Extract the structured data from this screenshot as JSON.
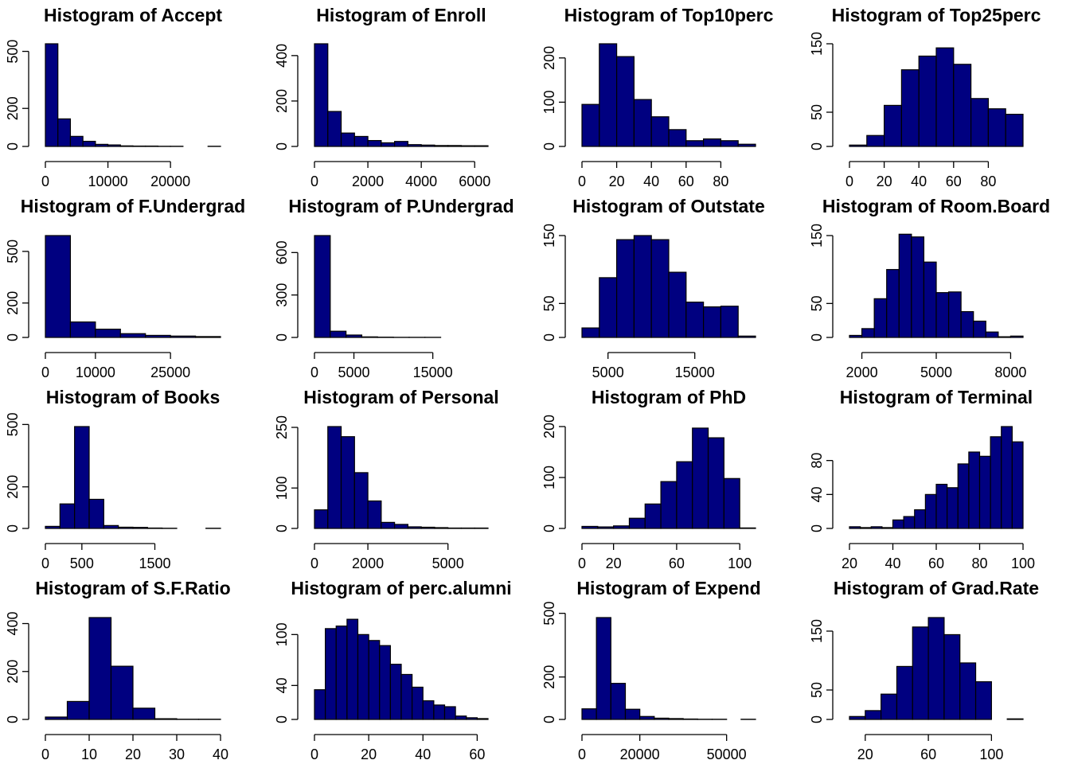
{
  "chart_data": [
    {
      "type": "bar",
      "title": "Histogram of Accept",
      "breaks": [
        0,
        2000,
        4000,
        6000,
        8000,
        10000,
        12000,
        14000,
        16000,
        18000,
        20000,
        22000,
        24000,
        26000,
        28000
      ],
      "counts": [
        540,
        145,
        53,
        27,
        11,
        8,
        3,
        2,
        2,
        1,
        1,
        0,
        0,
        1
      ],
      "xlim": [
        0,
        28000
      ],
      "ylim": [
        0,
        540
      ],
      "xticks": [
        0,
        10000,
        20000
      ],
      "yticks": [
        0,
        200,
        500
      ],
      "grid": false
    },
    {
      "type": "bar",
      "title": "Histogram of Enroll",
      "breaks": [
        0,
        500,
        1000,
        1500,
        2000,
        2500,
        3000,
        3500,
        4000,
        4500,
        5000,
        5500,
        6000,
        6500
      ],
      "counts": [
        452,
        154,
        59,
        44,
        26,
        16,
        22,
        8,
        6,
        4,
        4,
        3,
        3
      ],
      "xlim": [
        0,
        6500
      ],
      "ylim": [
        0,
        452
      ],
      "xticks": [
        0,
        2000,
        4000,
        6000
      ],
      "yticks": [
        0,
        200,
        400
      ],
      "grid": false
    },
    {
      "type": "bar",
      "title": "Histogram of Top10perc",
      "breaks": [
        0,
        10,
        20,
        30,
        40,
        50,
        60,
        70,
        80,
        90,
        100
      ],
      "counts": [
        95,
        232,
        203,
        106,
        67,
        38,
        13,
        17,
        13,
        5
      ],
      "xlim": [
        0,
        100
      ],
      "ylim": [
        0,
        232
      ],
      "xticks": [
        0,
        20,
        40,
        60,
        80
      ],
      "yticks": [
        0,
        100,
        200
      ],
      "grid": false
    },
    {
      "type": "bar",
      "title": "Histogram of Top25perc",
      "breaks": [
        0,
        10,
        20,
        30,
        40,
        50,
        60,
        70,
        80,
        90,
        100
      ],
      "counts": [
        2,
        16,
        60,
        112,
        132,
        144,
        120,
        70,
        55,
        47
      ],
      "xlim": [
        0,
        100
      ],
      "ylim": [
        0,
        150
      ],
      "xticks": [
        0,
        20,
        40,
        60,
        80
      ],
      "yticks": [
        0,
        50,
        150
      ],
      "grid": false
    },
    {
      "type": "bar",
      "title": "Histogram of F.Undergrad",
      "breaks": [
        0,
        5000,
        10000,
        15000,
        20000,
        25000,
        30000,
        35000
      ],
      "counts": [
        592,
        90,
        48,
        22,
        12,
        8,
        5
      ],
      "xlim": [
        0,
        35000
      ],
      "ylim": [
        0,
        592
      ],
      "xticks": [
        0,
        10000,
        25000
      ],
      "yticks": [
        0,
        200,
        500
      ],
      "grid": false
    },
    {
      "type": "bar",
      "title": "Histogram of P.Undergrad",
      "breaks": [
        0,
        2000,
        4000,
        6000,
        8000,
        10000,
        12000,
        14000,
        16000,
        18000,
        20000,
        22000
      ],
      "counts": [
        720,
        44,
        17,
        4,
        2,
        1,
        1,
        1,
        0,
        0,
        0,
        1
      ],
      "xlim": [
        0,
        22000
      ],
      "ylim": [
        0,
        720
      ],
      "xticks": [
        0,
        5000,
        15000
      ],
      "yticks": [
        0,
        300,
        600
      ],
      "grid": false
    },
    {
      "type": "bar",
      "title": "Histogram of Outstate",
      "breaks": [
        2000,
        4000,
        6000,
        8000,
        10000,
        12000,
        14000,
        16000,
        18000,
        20000,
        22000
      ],
      "counts": [
        14,
        88,
        144,
        150,
        144,
        96,
        52,
        45,
        46,
        2
      ],
      "xlim": [
        2000,
        22000
      ],
      "ylim": [
        0,
        150
      ],
      "xticks": [
        5000,
        15000
      ],
      "yticks": [
        0,
        50,
        150
      ],
      "grid": false
    },
    {
      "type": "bar",
      "title": "Histogram of Room.Board",
      "breaks": [
        1500,
        2000,
        2500,
        3000,
        3500,
        4000,
        4500,
        5000,
        5500,
        6000,
        6500,
        7000,
        7500,
        8000,
        8500
      ],
      "counts": [
        3,
        13,
        57,
        100,
        152,
        148,
        111,
        66,
        67,
        38,
        24,
        8,
        1,
        2
      ],
      "xlim": [
        1500,
        8500
      ],
      "ylim": [
        0,
        150
      ],
      "xticks": [
        2000,
        5000,
        8000
      ],
      "yticks": [
        0,
        50,
        150
      ],
      "grid": false
    },
    {
      "type": "bar",
      "title": "Histogram of Books",
      "breaks": [
        0,
        200,
        400,
        600,
        800,
        1000,
        1200,
        1400,
        1600,
        1800,
        2000,
        2200,
        2400
      ],
      "counts": [
        10,
        118,
        490,
        140,
        14,
        6,
        5,
        2,
        1,
        0,
        0,
        1
      ],
      "xlim": [
        0,
        2400
      ],
      "ylim": [
        0,
        490
      ],
      "xticks": [
        0,
        500,
        1500
      ],
      "yticks": [
        0,
        200,
        500
      ],
      "grid": false
    },
    {
      "type": "bar",
      "title": "Histogram of Personal",
      "breaks": [
        0,
        500,
        1000,
        1500,
        2000,
        2500,
        3000,
        3500,
        4000,
        4500,
        5000,
        5500,
        6000,
        6500
      ],
      "counts": [
        46,
        252,
        227,
        138,
        68,
        15,
        10,
        4,
        3,
        2,
        1,
        1,
        1
      ],
      "xlim": [
        0,
        6500
      ],
      "ylim": [
        0,
        252
      ],
      "xticks": [
        0,
        2000,
        5000
      ],
      "yticks": [
        0,
        100,
        250
      ],
      "grid": false
    },
    {
      "type": "bar",
      "title": "Histogram of PhD",
      "breaks": [
        0,
        10,
        20,
        30,
        40,
        50,
        60,
        70,
        80,
        90,
        100,
        110
      ],
      "counts": [
        4,
        3,
        5,
        20,
        48,
        92,
        131,
        197,
        178,
        98,
        1
      ],
      "xlim": [
        0,
        110
      ],
      "ylim": [
        0,
        200
      ],
      "xticks": [
        0,
        20,
        60,
        100
      ],
      "yticks": [
        0,
        100,
        200
      ],
      "grid": false
    },
    {
      "type": "bar",
      "title": "Histogram of Terminal",
      "breaks": [
        20,
        25,
        30,
        35,
        40,
        45,
        50,
        55,
        60,
        65,
        70,
        75,
        80,
        85,
        90,
        95,
        100
      ],
      "counts": [
        2,
        1,
        2,
        1,
        10,
        14,
        22,
        40,
        52,
        48,
        76,
        90,
        85,
        108,
        120,
        102
      ],
      "xlim": [
        20,
        100
      ],
      "ylim": [
        0,
        120
      ],
      "xticks": [
        20,
        40,
        60,
        80,
        100
      ],
      "yticks": [
        0,
        40,
        80
      ],
      "grid": false
    },
    {
      "type": "bar",
      "title": "Histogram of S.F.Ratio",
      "breaks": [
        0,
        5,
        10,
        15,
        20,
        25,
        30,
        35,
        40
      ],
      "counts": [
        10,
        75,
        425,
        222,
        47,
        3,
        1,
        1
      ],
      "xlim": [
        0,
        40
      ],
      "ylim": [
        0,
        425
      ],
      "xticks": [
        0,
        10,
        20,
        30,
        40
      ],
      "yticks": [
        0,
        200,
        400
      ],
      "grid": false
    },
    {
      "type": "bar",
      "title": "Histogram of perc.alumni",
      "breaks": [
        0,
        4,
        8,
        12,
        16,
        20,
        24,
        28,
        32,
        36,
        40,
        44,
        48,
        52,
        56,
        60,
        64
      ],
      "counts": [
        35,
        107,
        110,
        118,
        100,
        93,
        87,
        65,
        53,
        38,
        22,
        17,
        15,
        4,
        2,
        1
      ],
      "xlim": [
        0,
        64
      ],
      "ylim": [
        0,
        120
      ],
      "xticks": [
        0,
        20,
        40,
        60
      ],
      "yticks": [
        0,
        40,
        100
      ],
      "grid": false
    },
    {
      "type": "bar",
      "title": "Histogram of Expend",
      "breaks": [
        0,
        5000,
        10000,
        15000,
        20000,
        25000,
        30000,
        35000,
        40000,
        45000,
        50000,
        55000,
        60000
      ],
      "counts": [
        50,
        480,
        170,
        48,
        14,
        6,
        4,
        2,
        1,
        1,
        0,
        1
      ],
      "xlim": [
        0,
        60000
      ],
      "ylim": [
        0,
        480
      ],
      "xticks": [
        0,
        20000,
        50000
      ],
      "yticks": [
        0,
        200,
        500
      ],
      "grid": false
    },
    {
      "type": "bar",
      "title": "Histogram of Grad.Rate",
      "breaks": [
        10,
        20,
        30,
        40,
        50,
        60,
        70,
        80,
        90,
        100,
        110,
        120
      ],
      "counts": [
        5,
        15,
        43,
        90,
        157,
        173,
        144,
        96,
        64,
        0,
        1
      ],
      "xlim": [
        10,
        120
      ],
      "ylim": [
        0,
        173
      ],
      "xticks": [
        20,
        60,
        100
      ],
      "yticks": [
        0,
        50,
        150
      ],
      "grid": false
    }
  ]
}
